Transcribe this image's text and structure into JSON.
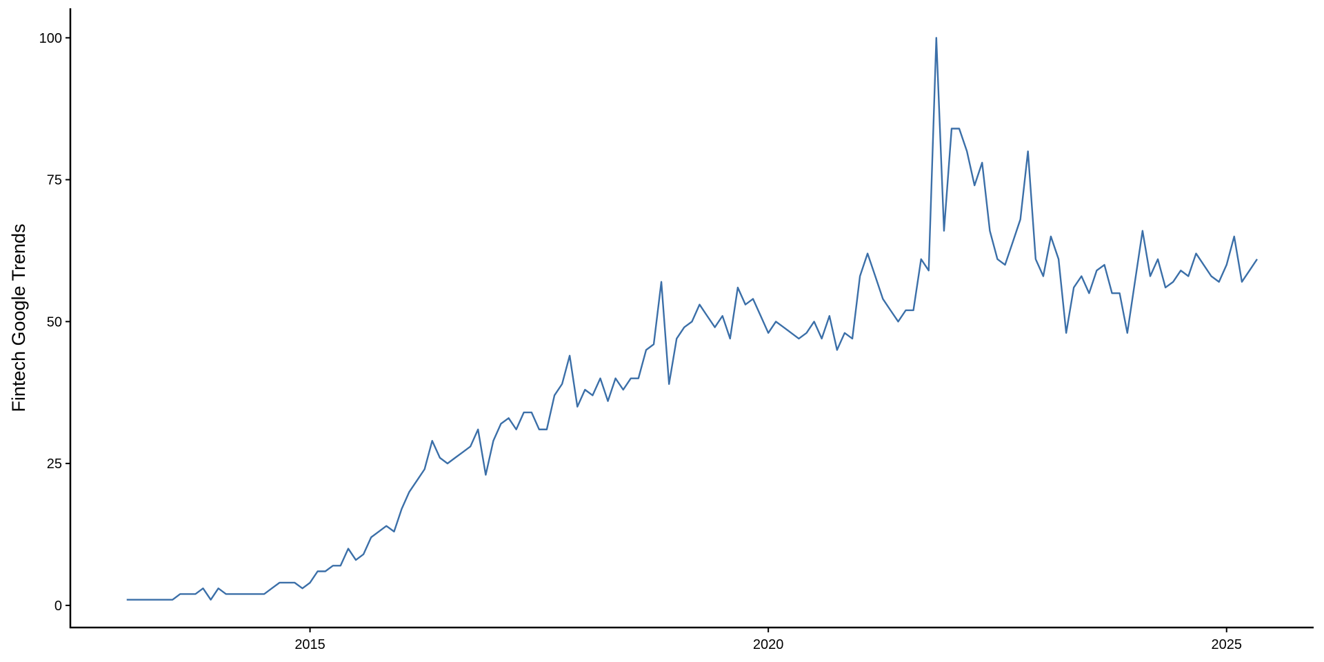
{
  "chart_data": {
    "type": "line",
    "ylabel": "Fintech Google Trends",
    "color": "#3b6fa8",
    "xlim": [
      2012.385,
      2025.95
    ],
    "xticks": [
      2015,
      2020,
      2025
    ],
    "ylim": [
      -3.9,
      105.2
    ],
    "yticks": [
      0,
      25,
      50,
      75,
      100
    ],
    "grid": false,
    "x": [
      2013,
      2013.083,
      2013.167,
      2013.25,
      2013.333,
      2013.417,
      2013.5,
      2013.583,
      2013.667,
      2013.75,
      2013.833,
      2013.917,
      2014,
      2014.083,
      2014.167,
      2014.25,
      2014.333,
      2014.417,
      2014.5,
      2014.583,
      2014.667,
      2014.75,
      2014.833,
      2014.917,
      2015,
      2015.083,
      2015.167,
      2015.25,
      2015.333,
      2015.417,
      2015.5,
      2015.583,
      2015.667,
      2015.75,
      2015.833,
      2015.917,
      2016,
      2016.083,
      2016.167,
      2016.25,
      2016.333,
      2016.417,
      2016.5,
      2016.583,
      2016.667,
      2016.75,
      2016.833,
      2016.917,
      2017,
      2017.083,
      2017.167,
      2017.25,
      2017.333,
      2017.417,
      2017.5,
      2017.583,
      2017.667,
      2017.75,
      2017.833,
      2017.917,
      2018,
      2018.083,
      2018.167,
      2018.25,
      2018.333,
      2018.417,
      2018.5,
      2018.583,
      2018.667,
      2018.75,
      2018.833,
      2018.917,
      2019,
      2019.083,
      2019.167,
      2019.25,
      2019.333,
      2019.417,
      2019.5,
      2019.583,
      2019.667,
      2019.75,
      2019.833,
      2019.917,
      2020,
      2020.083,
      2020.167,
      2020.25,
      2020.333,
      2020.417,
      2020.5,
      2020.583,
      2020.667,
      2020.75,
      2020.833,
      2020.917,
      2021,
      2021.083,
      2021.167,
      2021.25,
      2021.333,
      2021.417,
      2021.5,
      2021.583,
      2021.667,
      2021.75,
      2021.833,
      2021.917,
      2022,
      2022.083,
      2022.167,
      2022.25,
      2022.333,
      2022.417,
      2022.5,
      2022.583,
      2022.667,
      2022.75,
      2022.833,
      2022.917,
      2023,
      2023.083,
      2023.167,
      2023.25,
      2023.333,
      2023.417,
      2023.5,
      2023.583,
      2023.667,
      2023.75,
      2023.833,
      2023.917,
      2024,
      2024.083,
      2024.167,
      2024.25,
      2024.333,
      2024.417,
      2024.5,
      2024.583,
      2024.667,
      2024.75,
      2024.833,
      2024.917,
      2025,
      2025.083,
      2025.167,
      2025.25,
      2025.333
    ],
    "values": [
      1,
      1,
      1,
      1,
      1,
      1,
      1,
      2,
      2,
      2,
      3,
      1,
      3,
      2,
      2,
      2,
      2,
      2,
      2,
      3,
      4,
      4,
      4,
      3,
      4,
      6,
      6,
      7,
      7,
      10,
      8,
      9,
      12,
      13,
      14,
      13,
      17,
      20,
      22,
      24,
      29,
      26,
      25,
      26,
      27,
      28,
      31,
      23,
      29,
      32,
      33,
      31,
      34,
      34,
      31,
      31,
      37,
      39,
      44,
      35,
      38,
      37,
      40,
      36,
      40,
      38,
      40,
      40,
      45,
      46,
      57,
      39,
      47,
      49,
      50,
      53,
      51,
      49,
      51,
      47,
      56,
      53,
      54,
      51,
      48,
      50,
      49,
      48,
      47,
      48,
      50,
      47,
      51,
      45,
      48,
      47,
      58,
      62,
      58,
      54,
      52,
      50,
      52,
      52,
      61,
      59,
      100,
      66,
      84,
      84,
      80,
      74,
      78,
      66,
      61,
      60,
      64,
      68,
      80,
      61,
      58,
      65,
      61,
      48,
      56,
      58,
      55,
      59,
      60,
      55,
      55,
      48,
      57,
      66,
      58,
      61,
      56,
      57,
      59,
      58,
      62,
      60,
      58,
      57,
      60,
      65,
      57,
      59,
      61
    ]
  }
}
